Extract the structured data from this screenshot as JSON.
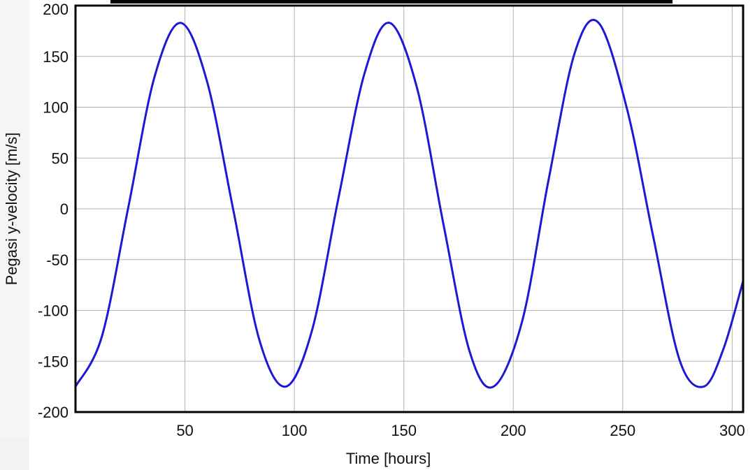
{
  "chart_data": {
    "type": "line",
    "title": "",
    "xlabel": "Time [hours]",
    "ylabel": "Pegasi y-velocity [m/s]",
    "xlim": [
      0,
      305
    ],
    "ylim": [
      -200,
      200
    ],
    "x_ticks": [
      50,
      100,
      150,
      200,
      250,
      300
    ],
    "y_ticks": [
      200,
      150,
      100,
      50,
      0,
      -50,
      -100,
      -150,
      -200
    ],
    "grid": true,
    "legend": "none",
    "series": [
      {
        "color": "#1d17d6",
        "x": [
          0,
          12,
          24,
          36,
          48,
          60,
          72,
          84,
          96,
          108,
          120,
          132,
          143.5,
          156,
          168,
          180,
          191,
          204,
          216,
          228,
          239,
          252,
          264,
          276,
          287,
          296,
          305
        ],
        "y": [
          -175,
          -126,
          0,
          129,
          183,
          126,
          0,
          -129,
          -175,
          -120,
          9,
          133,
          183,
          119,
          -14,
          -140,
          -175,
          -111,
          27,
          153,
          183,
          98,
          -28,
          -149,
          -175,
          -138,
          -71
        ]
      }
    ]
  },
  "colors": {
    "line": "#1d17d6",
    "grid": "#b3b3b3",
    "frame": "#000000"
  }
}
